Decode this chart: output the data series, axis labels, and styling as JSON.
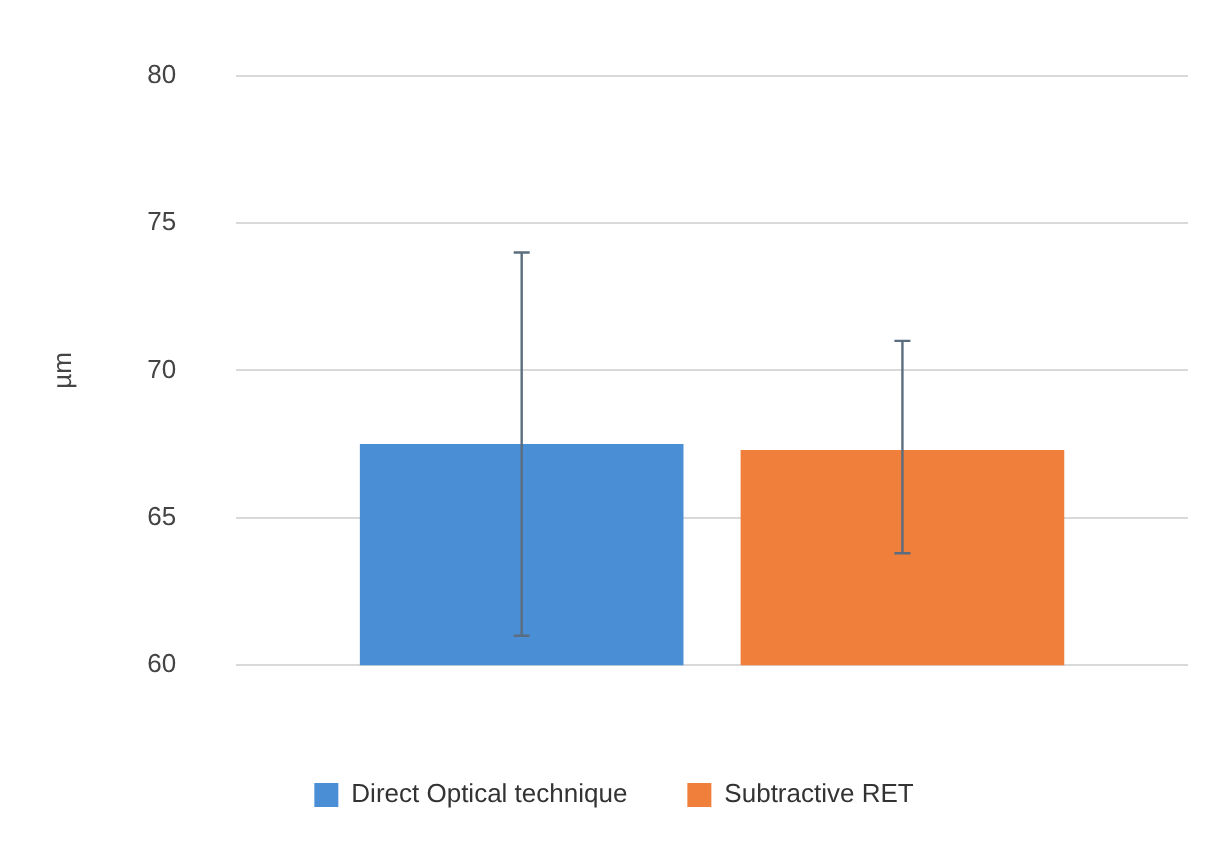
{
  "chart_data": {
    "type": "bar",
    "ylabel": "µm",
    "categories": [
      null
    ],
    "series": [
      {
        "name": "Direct Optical technique",
        "color": "#4a8fd6",
        "values": [
          67.5
        ],
        "errors": [
          [
            61,
            74
          ]
        ]
      },
      {
        "name": "Subtractive RET",
        "color": "#f07f3c",
        "values": [
          67.3
        ],
        "errors": [
          [
            63.8,
            71
          ]
        ]
      }
    ],
    "ylim": [
      60,
      80
    ],
    "yticks": [
      60,
      65,
      70,
      75,
      80
    ],
    "grid": "y",
    "legend": "bottom"
  }
}
